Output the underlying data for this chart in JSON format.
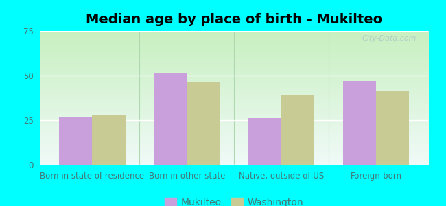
{
  "title": "Median age by place of birth - Mukilteo",
  "categories": [
    "Born in state of residence",
    "Born in other state",
    "Native, outside of US",
    "Foreign-born"
  ],
  "mukilteo_values": [
    27,
    51,
    26,
    47
  ],
  "washington_values": [
    28,
    46,
    39,
    41
  ],
  "mukilteo_color": "#c9a0dc",
  "washington_color": "#c8cc94",
  "ylim": [
    0,
    75
  ],
  "yticks": [
    0,
    25,
    50,
    75
  ],
  "bg_bottom": "#c8f0c0",
  "bg_top": "#f0faf8",
  "outer_background": "#00ffff",
  "bar_width": 0.35,
  "legend_labels": [
    "Mukilteo",
    "Washington"
  ],
  "title_fontsize": 14,
  "tick_fontsize": 8.5,
  "legend_fontsize": 10,
  "grid_color": "#d0e8d0",
  "tick_color": "#447777",
  "separator_color": "#b0d8b0"
}
